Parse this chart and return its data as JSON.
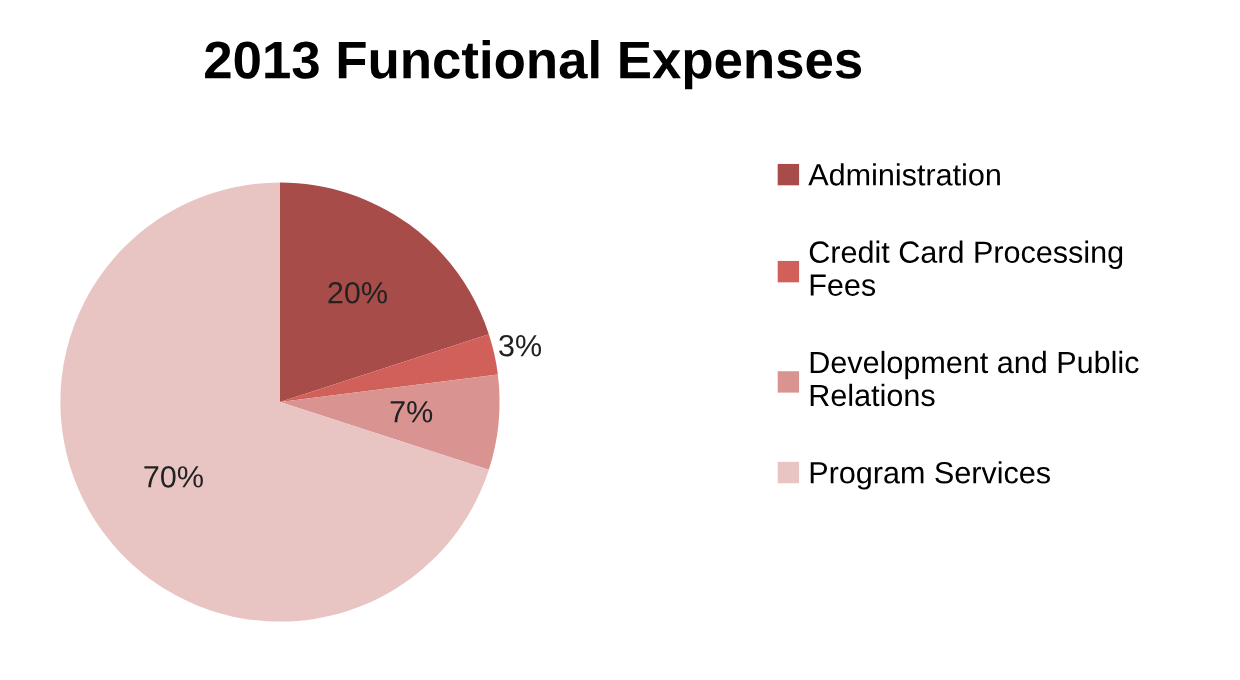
{
  "chart_data": {
    "type": "pie",
    "title": "2013 Functional Expenses",
    "categories": [
      "Administration",
      "Credit Card Processing Fees",
      "Development and Public Relations",
      "Program Services"
    ],
    "values": [
      20,
      3,
      7,
      70
    ],
    "value_labels": [
      "20%",
      "3%",
      "7%",
      "70%"
    ],
    "colors": [
      "#a84c4a",
      "#d15f5a",
      "#d99492",
      "#e8c4c3"
    ],
    "legend": "right"
  }
}
